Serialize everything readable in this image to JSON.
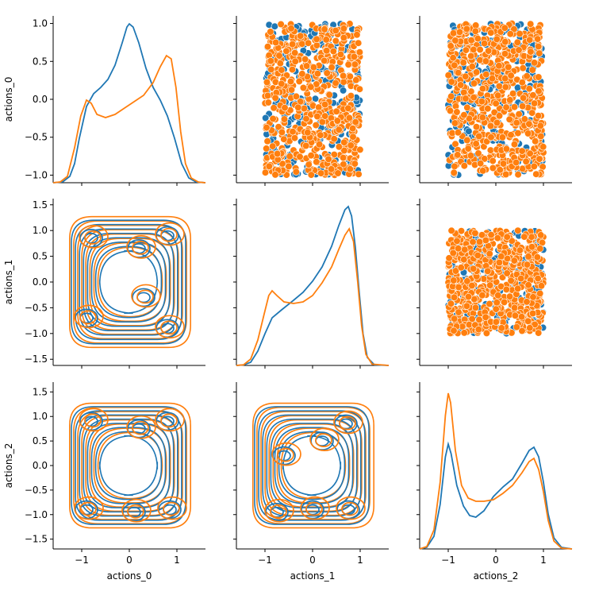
{
  "chart_data": {
    "type": "pairplot",
    "variables": [
      "actions_0",
      "actions_1",
      "actions_2"
    ],
    "colors": {
      "series_a": "#1f77b4",
      "series_b": "#ff7f0e"
    },
    "x_ticks": [
      -1,
      0,
      1
    ],
    "x_range": [
      -1.6,
      1.6
    ],
    "y_ranges": [
      [
        -1.1,
        1.1
      ],
      [
        -1.62,
        1.62
      ],
      [
        -1.7,
        1.7
      ]
    ],
    "y_ticks": [
      [
        -1.0,
        -0.5,
        0.0,
        0.5,
        1.0
      ],
      [
        -1.5,
        -1.0,
        -0.5,
        0.0,
        0.5,
        1.0,
        1.5
      ],
      [
        -1.5,
        -1.0,
        -0.5,
        0.0,
        0.5,
        1.0,
        1.5
      ]
    ],
    "y_tick_labels": [
      [
        "−1.0",
        "−0.5",
        "0.0",
        "0.5",
        "1.0"
      ],
      [
        "−1.5",
        "−1.0",
        "−0.5",
        "0.0",
        "0.5",
        "1.0",
        "1.5"
      ],
      [
        "−1.5",
        "−1.0",
        "−0.5",
        "0.0",
        "0.5",
        "1.0",
        "1.5"
      ]
    ],
    "x_tick_labels": [
      "−1",
      "0",
      "1"
    ],
    "diagonal_kde": [
      {
        "variable": "actions_0",
        "series_a": [
          [
            -1.6,
            0
          ],
          [
            -1.4,
            0.005
          ],
          [
            -1.25,
            0.04
          ],
          [
            -1.15,
            0.12
          ],
          [
            -1.05,
            0.28
          ],
          [
            -0.9,
            0.48
          ],
          [
            -0.75,
            0.56
          ],
          [
            -0.6,
            0.6
          ],
          [
            -0.45,
            0.65
          ],
          [
            -0.3,
            0.74
          ],
          [
            -0.15,
            0.88
          ],
          [
            -0.05,
            0.98
          ],
          [
            0.0,
            1.0
          ],
          [
            0.08,
            0.98
          ],
          [
            0.2,
            0.88
          ],
          [
            0.35,
            0.72
          ],
          [
            0.5,
            0.6
          ],
          [
            0.65,
            0.52
          ],
          [
            0.8,
            0.42
          ],
          [
            0.95,
            0.28
          ],
          [
            1.1,
            0.12
          ],
          [
            1.25,
            0.03
          ],
          [
            1.4,
            0.005
          ],
          [
            1.6,
            0
          ]
        ],
        "series_b": [
          [
            -1.6,
            0
          ],
          [
            -1.45,
            0.005
          ],
          [
            -1.3,
            0.04
          ],
          [
            -1.15,
            0.22
          ],
          [
            -1.02,
            0.42
          ],
          [
            -0.9,
            0.52
          ],
          [
            -0.8,
            0.5
          ],
          [
            -0.68,
            0.43
          ],
          [
            -0.5,
            0.41
          ],
          [
            -0.3,
            0.43
          ],
          [
            -0.1,
            0.47
          ],
          [
            0.1,
            0.51
          ],
          [
            0.3,
            0.55
          ],
          [
            0.5,
            0.63
          ],
          [
            0.65,
            0.73
          ],
          [
            0.78,
            0.8
          ],
          [
            0.88,
            0.78
          ],
          [
            0.98,
            0.6
          ],
          [
            1.08,
            0.32
          ],
          [
            1.18,
            0.12
          ],
          [
            1.3,
            0.03
          ],
          [
            1.45,
            0.004
          ],
          [
            1.6,
            0
          ]
        ]
      },
      {
        "variable": "actions_1",
        "series_a": [
          [
            -1.6,
            0
          ],
          [
            -1.45,
            0.003
          ],
          [
            -1.3,
            0.02
          ],
          [
            -1.15,
            0.09
          ],
          [
            -1.0,
            0.2
          ],
          [
            -0.85,
            0.3
          ],
          [
            -0.65,
            0.35
          ],
          [
            -0.4,
            0.41
          ],
          [
            -0.2,
            0.46
          ],
          [
            0.0,
            0.53
          ],
          [
            0.2,
            0.62
          ],
          [
            0.4,
            0.75
          ],
          [
            0.55,
            0.88
          ],
          [
            0.68,
            0.98
          ],
          [
            0.75,
            1.0
          ],
          [
            0.82,
            0.94
          ],
          [
            0.9,
            0.74
          ],
          [
            0.98,
            0.46
          ],
          [
            1.06,
            0.2
          ],
          [
            1.15,
            0.05
          ],
          [
            1.3,
            0.004
          ],
          [
            1.6,
            0
          ]
        ],
        "series_b": [
          [
            -1.6,
            0
          ],
          [
            -1.45,
            0.004
          ],
          [
            -1.3,
            0.04
          ],
          [
            -1.15,
            0.16
          ],
          [
            -1.02,
            0.32
          ],
          [
            -0.92,
            0.44
          ],
          [
            -0.85,
            0.47
          ],
          [
            -0.75,
            0.44
          ],
          [
            -0.6,
            0.4
          ],
          [
            -0.4,
            0.39
          ],
          [
            -0.2,
            0.4
          ],
          [
            0.0,
            0.44
          ],
          [
            0.2,
            0.52
          ],
          [
            0.4,
            0.62
          ],
          [
            0.55,
            0.73
          ],
          [
            0.68,
            0.82
          ],
          [
            0.77,
            0.86
          ],
          [
            0.86,
            0.78
          ],
          [
            0.95,
            0.52
          ],
          [
            1.03,
            0.25
          ],
          [
            1.12,
            0.07
          ],
          [
            1.25,
            0.008
          ],
          [
            1.6,
            0
          ]
        ]
      },
      {
        "variable": "actions_2",
        "series_a": [
          [
            -1.6,
            0
          ],
          [
            -1.45,
            0.01
          ],
          [
            -1.3,
            0.08
          ],
          [
            -1.17,
            0.28
          ],
          [
            -1.06,
            0.58
          ],
          [
            -1.0,
            0.66
          ],
          [
            -0.94,
            0.6
          ],
          [
            -0.82,
            0.4
          ],
          [
            -0.68,
            0.27
          ],
          [
            -0.55,
            0.21
          ],
          [
            -0.42,
            0.2
          ],
          [
            -0.25,
            0.24
          ],
          [
            -0.05,
            0.33
          ],
          [
            0.15,
            0.39
          ],
          [
            0.35,
            0.44
          ],
          [
            0.55,
            0.54
          ],
          [
            0.7,
            0.62
          ],
          [
            0.8,
            0.64
          ],
          [
            0.9,
            0.58
          ],
          [
            1.0,
            0.42
          ],
          [
            1.1,
            0.22
          ],
          [
            1.22,
            0.07
          ],
          [
            1.38,
            0.01
          ],
          [
            1.6,
            0
          ]
        ],
        "series_b": [
          [
            -1.6,
            0
          ],
          [
            -1.45,
            0.015
          ],
          [
            -1.3,
            0.12
          ],
          [
            -1.17,
            0.42
          ],
          [
            -1.06,
            0.84
          ],
          [
            -1.0,
            0.98
          ],
          [
            -0.95,
            0.92
          ],
          [
            -0.85,
            0.62
          ],
          [
            -0.72,
            0.4
          ],
          [
            -0.58,
            0.32
          ],
          [
            -0.42,
            0.3
          ],
          [
            -0.25,
            0.3
          ],
          [
            -0.05,
            0.31
          ],
          [
            0.15,
            0.35
          ],
          [
            0.35,
            0.4
          ],
          [
            0.55,
            0.48
          ],
          [
            0.7,
            0.55
          ],
          [
            0.8,
            0.57
          ],
          [
            0.9,
            0.5
          ],
          [
            1.0,
            0.36
          ],
          [
            1.1,
            0.18
          ],
          [
            1.22,
            0.05
          ],
          [
            1.38,
            0.005
          ],
          [
            1.6,
            0
          ]
        ]
      }
    ],
    "scatter_panels": [
      {
        "row": 0,
        "col": 1,
        "x": "actions_1",
        "y": "actions_0"
      },
      {
        "row": 0,
        "col": 2,
        "x": "actions_2",
        "y": "actions_0"
      },
      {
        "row": 1,
        "col": 2,
        "x": "actions_2",
        "y": "actions_1"
      }
    ],
    "scatter_domain": [
      -1.0,
      1.0
    ],
    "kde_panels": [
      {
        "row": 1,
        "col": 0,
        "x": "actions_0",
        "y": "actions_1"
      },
      {
        "row": 2,
        "col": 0,
        "x": "actions_0",
        "y": "actions_2"
      },
      {
        "row": 2,
        "col": 1,
        "x": "actions_1",
        "y": "actions_2"
      }
    ],
    "contour_levels": 8,
    "grid": false,
    "legend": "none"
  }
}
